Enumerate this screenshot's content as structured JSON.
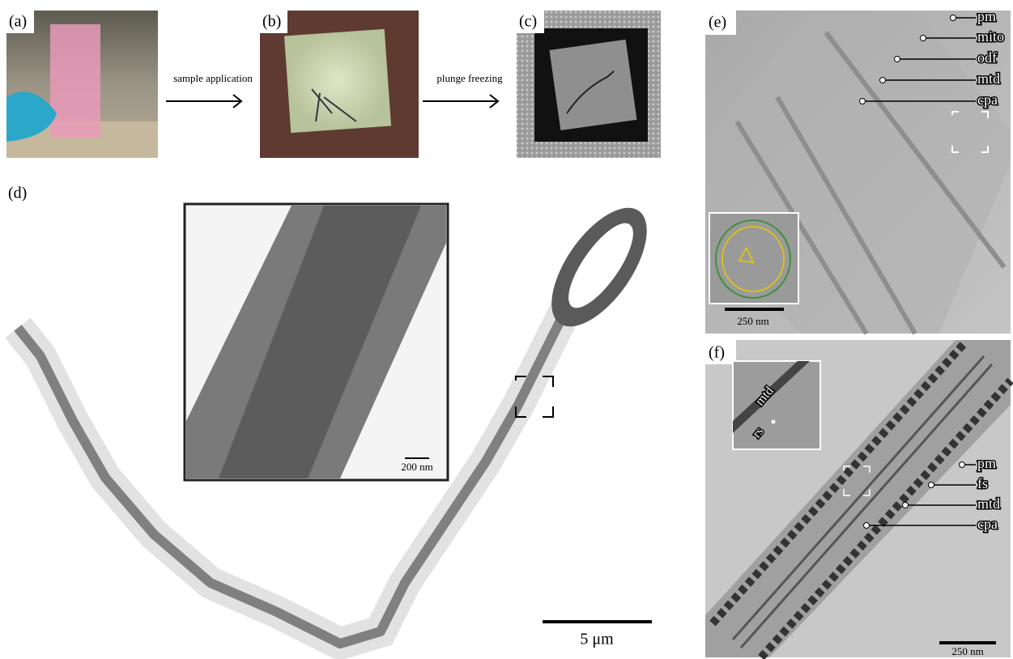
{
  "panels": {
    "a": {
      "label": "(a)"
    },
    "b": {
      "label": "(b)"
    },
    "c": {
      "label": "(c)"
    },
    "d": {
      "label": "(d)",
      "inset_scale": "200 nm",
      "scale": "5 μm"
    },
    "e": {
      "label": "(e)",
      "annotations": [
        "pm",
        "mito",
        "odf",
        "mtd",
        "cpa"
      ],
      "inset_scale": "250 nm"
    },
    "f": {
      "label": "(f)",
      "annotations": [
        "pm",
        "fs",
        "mtd",
        "cpa"
      ],
      "inset_annotations": [
        "mtd",
        "rs"
      ],
      "scale": "250 nm"
    }
  },
  "arrows": [
    {
      "label": "sample application"
    },
    {
      "label": "plunge freezing"
    }
  ]
}
